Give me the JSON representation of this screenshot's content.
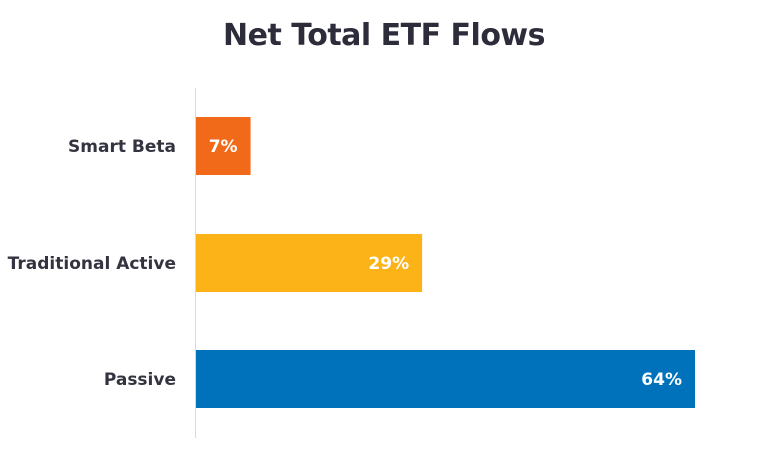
{
  "chart_data": {
    "type": "bar",
    "orientation": "horizontal",
    "title": "Net Total ETF Flows",
    "categories": [
      "Smart Beta",
      "Traditional Active",
      "Passive"
    ],
    "values": [
      7,
      29,
      64
    ],
    "value_labels": [
      "7%",
      "29%",
      "64%"
    ],
    "colors": [
      "#f06a1a",
      "#fcb317",
      "#0072bb"
    ],
    "unit": "%",
    "xlim": [
      0,
      64
    ],
    "grid": false,
    "legend": "none"
  }
}
